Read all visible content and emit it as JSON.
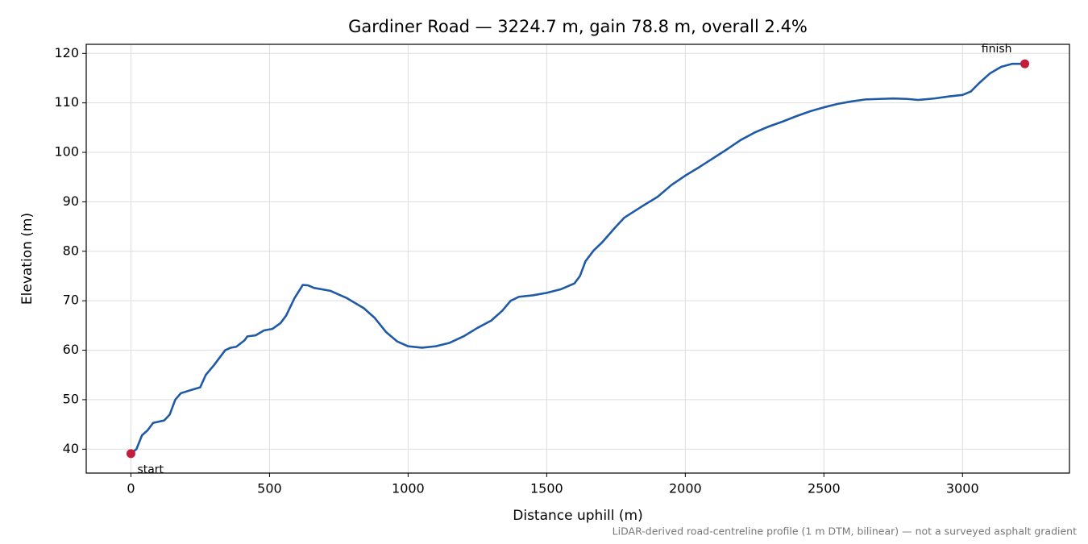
{
  "chart_data": {
    "type": "line",
    "title": "Gardiner Road — 3224.7 m, gain 78.8 m, overall 2.4%",
    "x_label": "Distance uphill (m)",
    "y_label": "Elevation (m)",
    "footnote": "LiDAR-derived road-centreline profile (1 m DTM, bilinear) — not a surveyed asphalt gradient",
    "color": "#1f5aa6",
    "x": [
      0,
      20,
      40,
      60,
      80,
      120,
      140,
      160,
      180,
      220,
      250,
      270,
      300,
      340,
      360,
      380,
      410,
      420,
      450,
      480,
      510,
      540,
      560,
      590,
      620,
      640,
      660,
      720,
      780,
      840,
      880,
      920,
      960,
      1000,
      1050,
      1100,
      1150,
      1200,
      1250,
      1300,
      1340,
      1370,
      1400,
      1450,
      1500,
      1550,
      1600,
      1620,
      1640,
      1670,
      1700,
      1750,
      1780,
      1850,
      1900,
      1950,
      2000,
      2050,
      2100,
      2150,
      2200,
      2250,
      2300,
      2350,
      2400,
      2450,
      2500,
      2550,
      2600,
      2650,
      2700,
      2750,
      2800,
      2840,
      2900,
      2950,
      3000,
      3030,
      3060,
      3100,
      3140,
      3180,
      3224.7
    ],
    "values": [
      39.1,
      40,
      42.8,
      43.8,
      45.3,
      45.8,
      47,
      50,
      51.3,
      52,
      52.5,
      55,
      57,
      60,
      60.5,
      60.7,
      62,
      62.8,
      63,
      64,
      64.3,
      65.5,
      67,
      70.5,
      73.2,
      73.1,
      72.6,
      72,
      70.5,
      68.5,
      66.5,
      63.7,
      61.8,
      60.8,
      60.5,
      60.8,
      61.5,
      62.8,
      64.5,
      66,
      68,
      70,
      70.8,
      71.1,
      71.6,
      72.3,
      73.5,
      75,
      78,
      80.2,
      81.8,
      85,
      86.8,
      89.3,
      91,
      93.4,
      95.3,
      97,
      98.8,
      100.6,
      102.5,
      104,
      105.2,
      106.2,
      107.3,
      108.3,
      109.1,
      109.8,
      110.3,
      110.7,
      110.8,
      110.9,
      110.8,
      110.6,
      110.9,
      111.3,
      111.6,
      112.3,
      114,
      116,
      117.3,
      117.9,
      117.9
    ],
    "endpoints": {
      "x": [
        0,
        3224.7
      ],
      "y": [
        39.1,
        117.9
      ],
      "labels": [
        "start",
        "finish"
      ],
      "color": "#c41e3a"
    },
    "xlim": [
      -161.2,
      3385.9
    ],
    "ylim": [
      35.16,
      121.84
    ],
    "xticks": [
      0,
      500,
      1000,
      1500,
      2000,
      2500,
      3000
    ],
    "yticks": [
      40,
      50,
      60,
      70,
      80,
      90,
      100,
      110,
      120
    ],
    "grid": true
  }
}
